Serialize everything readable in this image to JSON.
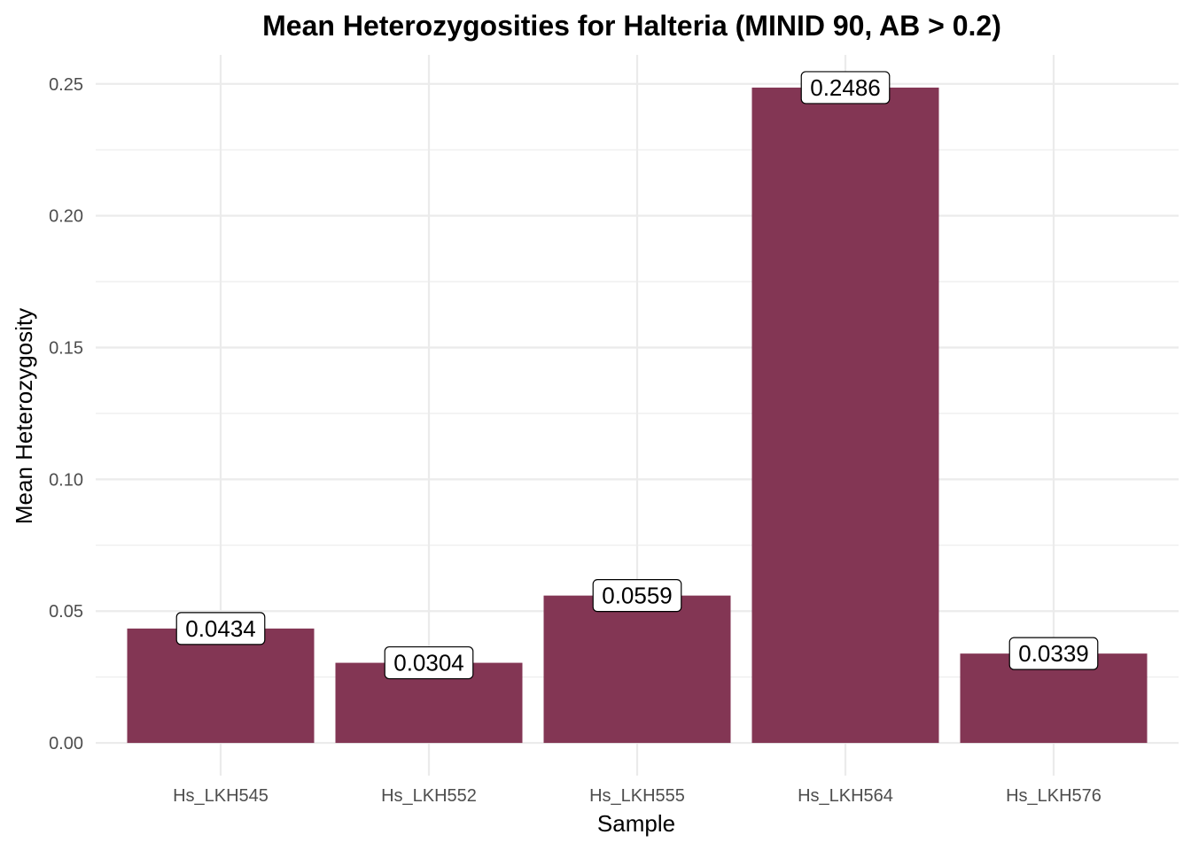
{
  "chart_data": {
    "type": "bar",
    "title": "Mean Heterozygosities for Halteria (MINID 90, AB > 0.2)",
    "xlabel": "Sample",
    "ylabel": "Mean Heterozygosity",
    "categories": [
      "Hs_LKH545",
      "Hs_LKH552",
      "Hs_LKH555",
      "Hs_LKH564",
      "Hs_LKH576"
    ],
    "values": [
      0.0434,
      0.0304,
      0.0559,
      0.2486,
      0.0339
    ],
    "data_labels": [
      "0.0434",
      "0.0304",
      "0.0559",
      "0.2486",
      "0.0339"
    ],
    "yticks": [
      0.0,
      0.05,
      0.1,
      0.15,
      0.2,
      0.25
    ],
    "ytick_labels": [
      "0.00",
      "0.05",
      "0.10",
      "0.15",
      "0.20",
      "0.25"
    ],
    "ylim": [
      -0.0124,
      0.261
    ],
    "grid": true,
    "legend": "none",
    "bar_color": "#833654"
  }
}
